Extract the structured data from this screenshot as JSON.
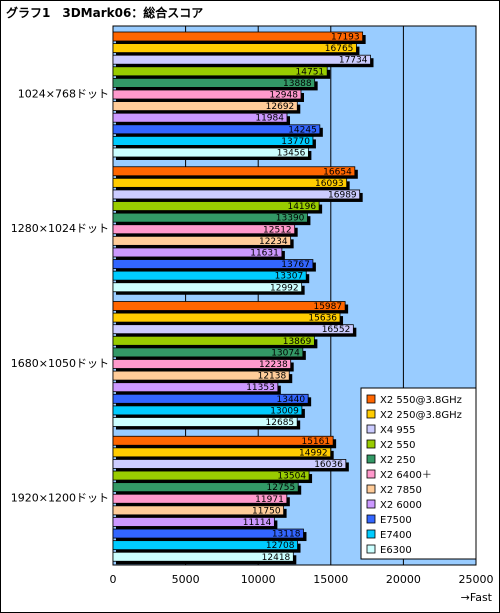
{
  "title": "グラフ1　3DMark06：総合スコア",
  "chart_data": {
    "type": "bar",
    "orientation": "horizontal",
    "title": "グラフ1　3DMark06：総合スコア",
    "xlabel": "→Fast",
    "ylabel": "",
    "xlim": [
      0,
      25000
    ],
    "xticks": [
      0,
      5000,
      10000,
      15000,
      20000,
      25000
    ],
    "grid": "vertical",
    "legend": "bottom-right",
    "categories": [
      "1024×768ドット",
      "1280×1024ドット",
      "1680×1050ドット",
      "1920×1200ドット"
    ],
    "series": [
      {
        "name": "X2 550@3.8GHz",
        "color": "#ff6600",
        "values": [
          17193,
          16654,
          15987,
          15161
        ]
      },
      {
        "name": "X2 250@3.8GHz",
        "color": "#ffcc00",
        "values": [
          16765,
          16093,
          15636,
          14992
        ]
      },
      {
        "name": "X4 955",
        "color": "#ccccff",
        "values": [
          17734,
          16989,
          16552,
          16036
        ]
      },
      {
        "name": "X2 550",
        "color": "#99cc00",
        "values": [
          14751,
          14196,
          13869,
          13504
        ]
      },
      {
        "name": "X2 250",
        "color": "#339966",
        "values": [
          13888,
          13390,
          13074,
          12755
        ]
      },
      {
        "name": "X2 6400＋",
        "color": "#ff99cc",
        "values": [
          12948,
          12512,
          12238,
          11971
        ]
      },
      {
        "name": "X2 7850",
        "color": "#ffcc99",
        "values": [
          12692,
          12234,
          12138,
          11750
        ]
      },
      {
        "name": "X2 6000",
        "color": "#cc99ff",
        "values": [
          11984,
          11631,
          11353,
          11114
        ]
      },
      {
        "name": "E7500",
        "color": "#3366ff",
        "values": [
          14245,
          13767,
          13440,
          13118
        ]
      },
      {
        "name": "E7400",
        "color": "#00ccff",
        "values": [
          13770,
          13307,
          13009,
          12708
        ]
      },
      {
        "name": "E6300",
        "color": "#ccffff",
        "values": [
          13456,
          12992,
          12685,
          12418
        ]
      }
    ]
  }
}
